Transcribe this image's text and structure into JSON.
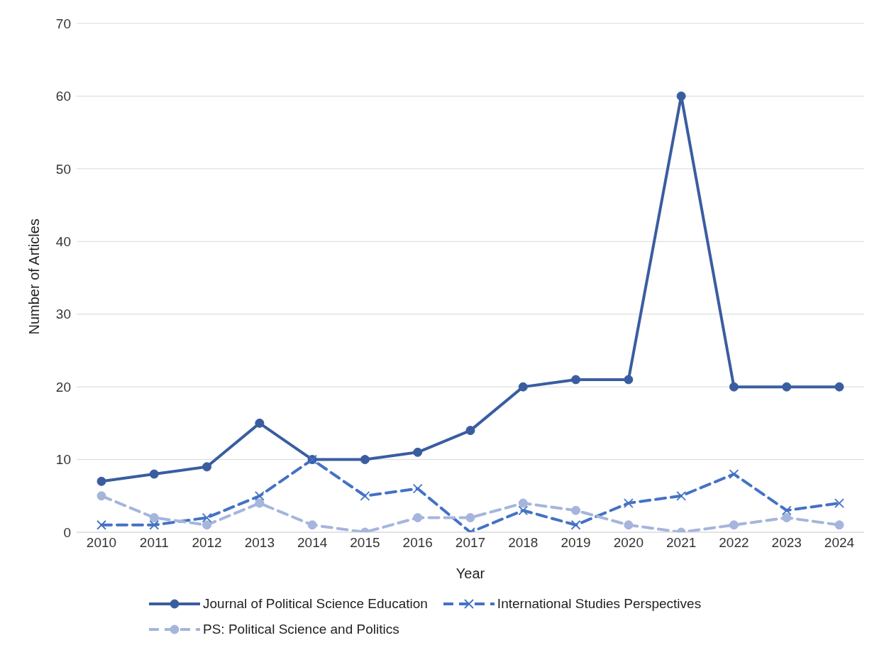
{
  "chart_data": {
    "type": "line",
    "xlabel": "Year",
    "ylabel": "Number of Articles",
    "categories": [
      "2010",
      "2011",
      "2012",
      "2013",
      "2014",
      "2015",
      "2016",
      "2017",
      "2018",
      "2019",
      "2020",
      "2021",
      "2022",
      "2023",
      "2024"
    ],
    "series": [
      {
        "name": "Journal of Political Science Education",
        "color": "#3a5da0",
        "marker": "circle",
        "line_style": "solid",
        "values": [
          7,
          8,
          9,
          15,
          10,
          10,
          11,
          14,
          20,
          21,
          21,
          60,
          20,
          20,
          20
        ]
      },
      {
        "name": "International Studies Perspectives",
        "color": "#4472c4",
        "marker": "cross",
        "line_style": "dashed",
        "values": [
          1,
          1,
          2,
          5,
          10,
          5,
          6,
          0,
          3,
          1,
          4,
          5,
          8,
          3,
          4
        ]
      },
      {
        "name": "PS: Political Science and Politics",
        "color": "#a5b5dc",
        "marker": "circle",
        "line_style": "dashed",
        "values": [
          5,
          2,
          1,
          4,
          1,
          0,
          2,
          2,
          4,
          3,
          1,
          0,
          1,
          2,
          1
        ]
      }
    ],
    "ylim": [
      0,
      70
    ],
    "yticks": [
      0,
      10,
      20,
      30,
      40,
      50,
      60,
      70
    ],
    "grid": "y",
    "legend": "bottom"
  }
}
